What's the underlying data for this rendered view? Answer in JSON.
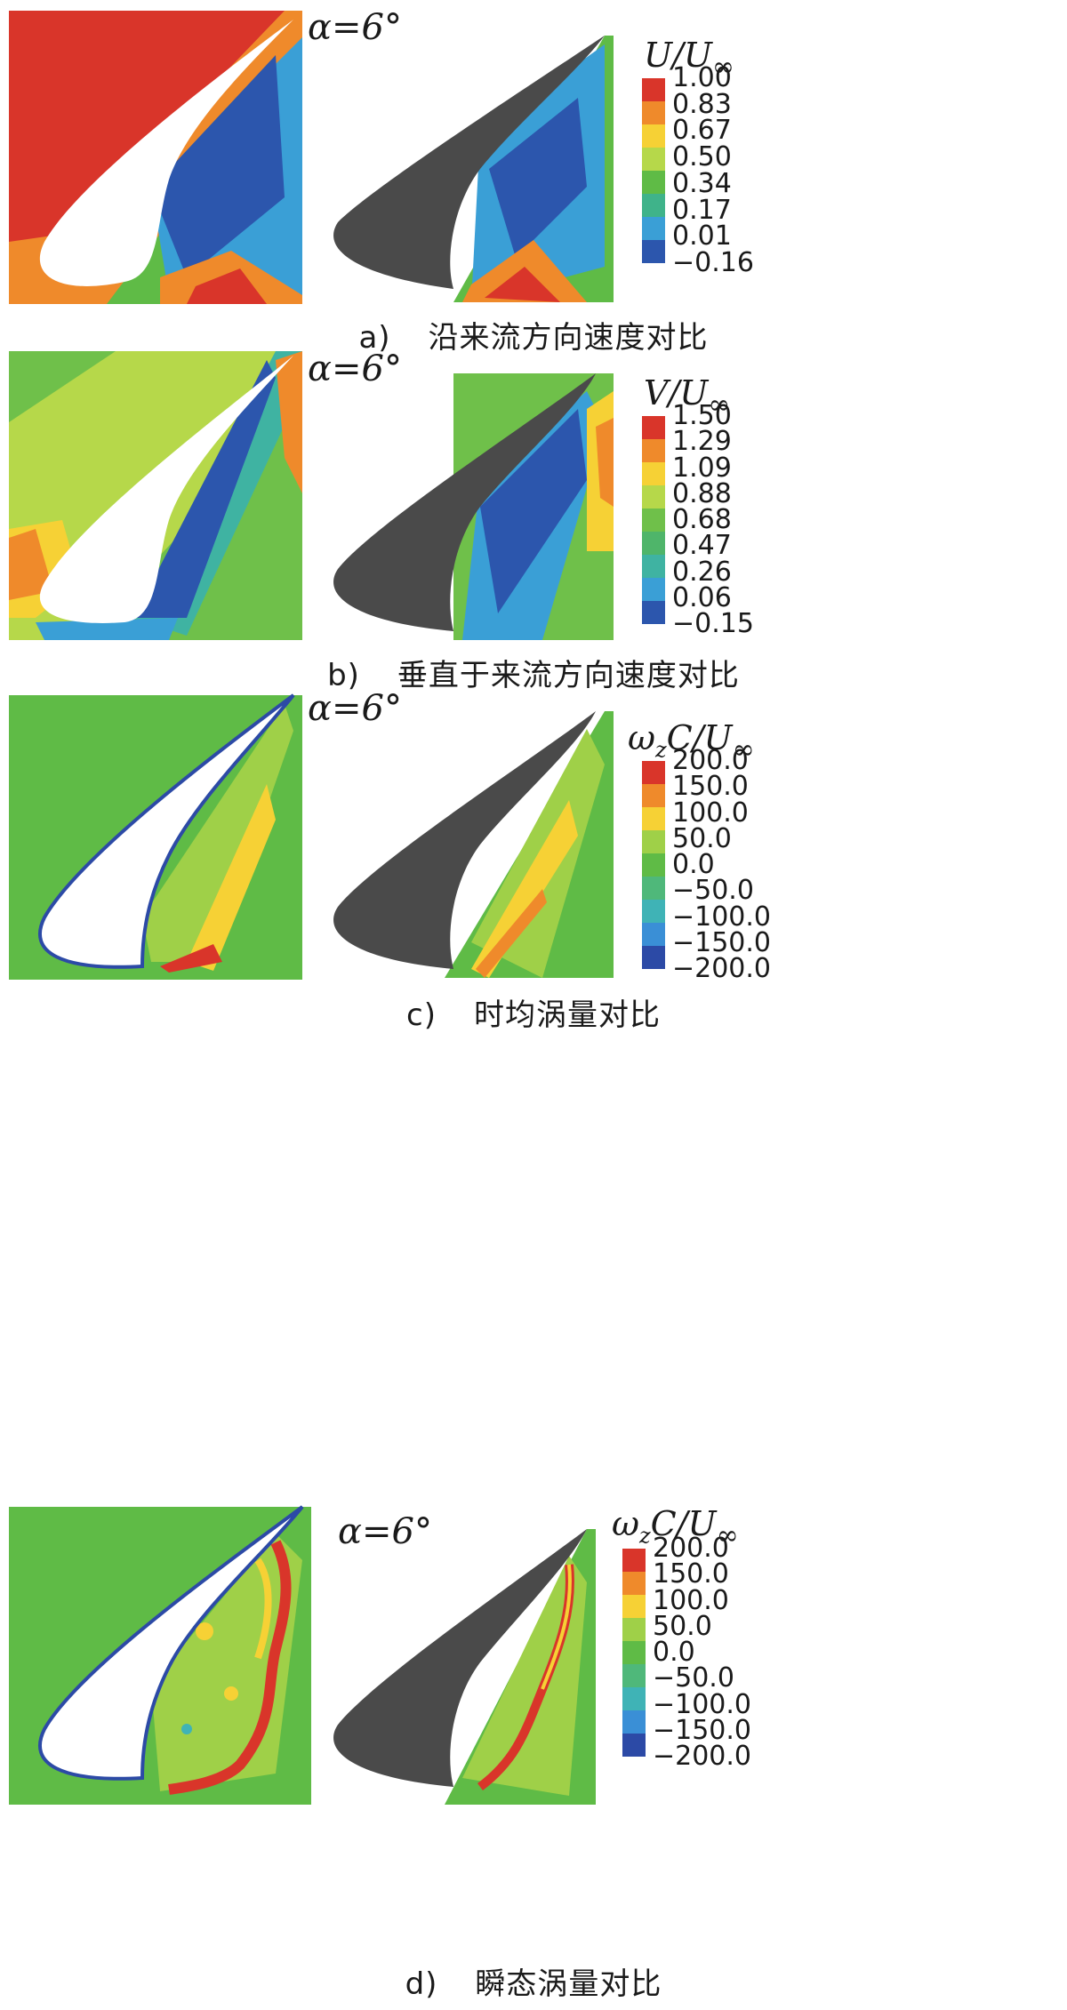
{
  "panels": [
    {
      "letter": "a)",
      "caption": "沿来流方向速度对比",
      "alpha": "α=6°",
      "colorbar": {
        "symbol": "U",
        "sub": "",
        "ticks": [
          "1.00",
          "0.83",
          "0.67",
          "0.50",
          "0.34",
          "0.17",
          "0.01",
          "−0.16"
        ],
        "colors": [
          "#d9352a",
          "#ef8a2b",
          "#f6d135",
          "#b6d84a",
          "#5fbb46",
          "#3fb38a",
          "#3a9fd6",
          "#2c56ad"
        ]
      }
    },
    {
      "letter": "b)",
      "caption": "垂直于来流方向速度对比",
      "alpha": "α=6°",
      "colorbar": {
        "symbol": "V",
        "sub": "",
        "ticks": [
          "1.50",
          "1.29",
          "1.09",
          "0.88",
          "0.68",
          "0.47",
          "0.26",
          "0.06",
          "−0.15"
        ],
        "colors": [
          "#d9352a",
          "#ef8a2b",
          "#f6d135",
          "#b6d84a",
          "#6fc04a",
          "#4fb56a",
          "#3fb3a2",
          "#3a9fd6",
          "#2c56ad"
        ]
      }
    },
    {
      "letter": "c)",
      "caption": "时均涡量对比",
      "alpha": "α=6°",
      "colorbar": {
        "symbol": "ω",
        "sub": "z",
        "symbol2": "C",
        "ticks": [
          "200.0",
          "150.0",
          "100.0",
          "50.0",
          "0.0",
          "−50.0",
          "−100.0",
          "−150.0",
          "−200.0"
        ],
        "colors": [
          "#d9352a",
          "#ef8a2b",
          "#f6d135",
          "#9fd048",
          "#5fbb46",
          "#4fb87a",
          "#3fb3b6",
          "#3a8fd6",
          "#2c4aa6"
        ]
      }
    },
    {
      "letter": "d)",
      "caption": "瞬态涡量对比",
      "alpha": "α=6°",
      "colorbar": {
        "symbol": "ω",
        "sub": "z",
        "symbol2": "C",
        "ticks": [
          "200.0",
          "150.0",
          "100.0",
          "50.0",
          "0.0",
          "−50.0",
          "−100.0",
          "−150.0",
          "−200.0"
        ],
        "colors": [
          "#d9352a",
          "#ef8a2b",
          "#f6d135",
          "#9fd048",
          "#5fbb46",
          "#4fb87a",
          "#3fb3b6",
          "#3a8fd6",
          "#2c4aa6"
        ]
      }
    }
  ]
}
